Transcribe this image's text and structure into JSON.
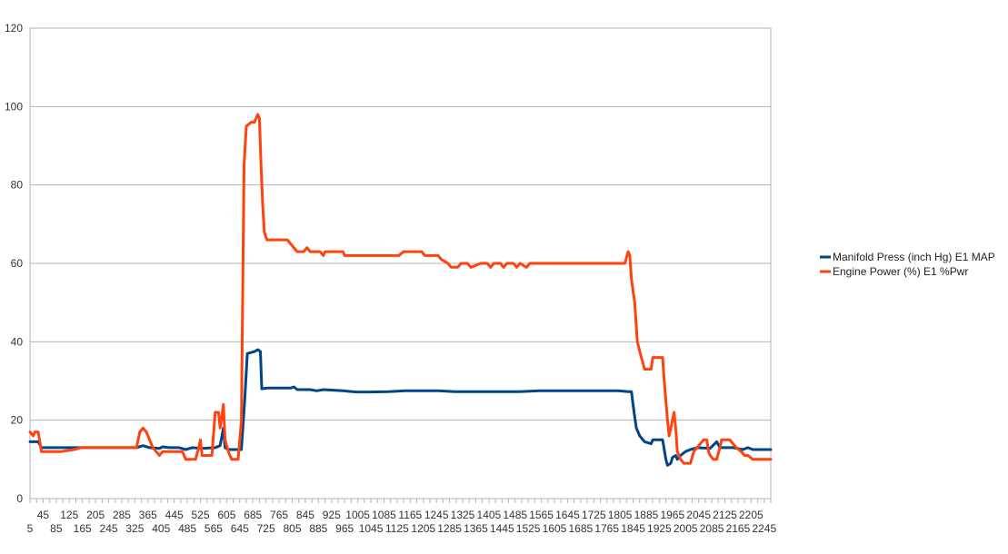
{
  "chart_data": {
    "type": "line",
    "title": "",
    "xlabel": "",
    "ylabel": "",
    "xlim": [
      5,
      2265
    ],
    "ylim": [
      0,
      120
    ],
    "yticks": [
      0,
      20,
      40,
      60,
      80,
      100,
      120
    ],
    "xticks_upper": [
      "45",
      "125",
      "205",
      "285",
      "365",
      "445",
      "525",
      "605",
      "685",
      "765",
      "845",
      "925",
      "1005",
      "1085",
      "1165",
      "1245",
      "1325",
      "1405",
      "1485",
      "1565",
      "1645",
      "1725",
      "1805",
      "1885",
      "1965",
      "2045",
      "2125",
      "2205"
    ],
    "xticks_lower": [
      "5",
      "85",
      "165",
      "245",
      "325",
      "405",
      "485",
      "565",
      "645",
      "725",
      "805",
      "885",
      "965",
      "1045",
      "1125",
      "1205",
      "1285",
      "1365",
      "1445",
      "1525",
      "1605",
      "1685",
      "1765",
      "1845",
      "1925",
      "2005",
      "2085",
      "2165",
      "2245"
    ],
    "grid": true,
    "legend_position": "right",
    "series": [
      {
        "name": "Manifold Press (inch Hg) E1 MAP",
        "color": "#004586",
        "points": [
          [
            5,
            14.5
          ],
          [
            30,
            14.5
          ],
          [
            40,
            13
          ],
          [
            120,
            13
          ],
          [
            160,
            13
          ],
          [
            300,
            13
          ],
          [
            330,
            13
          ],
          [
            350,
            13.5
          ],
          [
            370,
            13
          ],
          [
            400,
            12.8
          ],
          [
            410,
            13.2
          ],
          [
            430,
            13
          ],
          [
            460,
            13
          ],
          [
            480,
            12.5
          ],
          [
            500,
            13
          ],
          [
            530,
            12.8
          ],
          [
            570,
            13
          ],
          [
            585,
            13.5
          ],
          [
            595,
            18
          ],
          [
            600,
            13
          ],
          [
            610,
            12.5
          ],
          [
            650,
            12.5
          ],
          [
            660,
            25
          ],
          [
            668,
            37
          ],
          [
            690,
            37.5
          ],
          [
            700,
            38
          ],
          [
            708,
            37.5
          ],
          [
            712,
            28
          ],
          [
            730,
            28.2
          ],
          [
            800,
            28.2
          ],
          [
            810,
            28.5
          ],
          [
            820,
            27.8
          ],
          [
            860,
            27.8
          ],
          [
            880,
            27.5
          ],
          [
            900,
            27.8
          ],
          [
            960,
            27.5
          ],
          [
            1000,
            27.2
          ],
          [
            1040,
            27.2
          ],
          [
            1100,
            27.3
          ],
          [
            1150,
            27.5
          ],
          [
            1250,
            27.5
          ],
          [
            1300,
            27.3
          ],
          [
            1400,
            27.3
          ],
          [
            1500,
            27.3
          ],
          [
            1560,
            27.5
          ],
          [
            1700,
            27.5
          ],
          [
            1800,
            27.5
          ],
          [
            1830,
            27.3
          ],
          [
            1840,
            27.3
          ],
          [
            1848,
            22
          ],
          [
            1855,
            18
          ],
          [
            1865,
            16
          ],
          [
            1880,
            14.5
          ],
          [
            1900,
            14
          ],
          [
            1905,
            15
          ],
          [
            1935,
            15
          ],
          [
            1945,
            10
          ],
          [
            1950,
            8.5
          ],
          [
            1960,
            9
          ],
          [
            1965,
            10.5
          ],
          [
            1975,
            11
          ],
          [
            1980,
            10
          ],
          [
            1990,
            11
          ],
          [
            2005,
            12
          ],
          [
            2020,
            12.5
          ],
          [
            2040,
            13
          ],
          [
            2080,
            12.8
          ],
          [
            2100,
            14.5
          ],
          [
            2110,
            13
          ],
          [
            2150,
            13
          ],
          [
            2180,
            12.5
          ],
          [
            2195,
            13
          ],
          [
            2210,
            12.5
          ],
          [
            2265,
            12.5
          ]
        ]
      },
      {
        "name": "Engine Power (%) E1 %Pwr",
        "color": "#ff420e",
        "points": [
          [
            5,
            17
          ],
          [
            15,
            16
          ],
          [
            20,
            17
          ],
          [
            30,
            17
          ],
          [
            40,
            12
          ],
          [
            100,
            12
          ],
          [
            140,
            12.5
          ],
          [
            160,
            13
          ],
          [
            200,
            13
          ],
          [
            300,
            13
          ],
          [
            330,
            13
          ],
          [
            340,
            17
          ],
          [
            350,
            18
          ],
          [
            360,
            17
          ],
          [
            370,
            15
          ],
          [
            380,
            13
          ],
          [
            390,
            12
          ],
          [
            400,
            11
          ],
          [
            410,
            12
          ],
          [
            470,
            12
          ],
          [
            480,
            10
          ],
          [
            510,
            10
          ],
          [
            520,
            13
          ],
          [
            525,
            15
          ],
          [
            530,
            11
          ],
          [
            560,
            11
          ],
          [
            570,
            22
          ],
          [
            580,
            22
          ],
          [
            585,
            18
          ],
          [
            595,
            24
          ],
          [
            600,
            15
          ],
          [
            610,
            12
          ],
          [
            620,
            10
          ],
          [
            640,
            10
          ],
          [
            650,
            20
          ],
          [
            658,
            85
          ],
          [
            665,
            95
          ],
          [
            680,
            96
          ],
          [
            690,
            96
          ],
          [
            700,
            98
          ],
          [
            705,
            97
          ],
          [
            710,
            85
          ],
          [
            715,
            75
          ],
          [
            720,
            68
          ],
          [
            728,
            66
          ],
          [
            790,
            66
          ],
          [
            800,
            65
          ],
          [
            820,
            63
          ],
          [
            840,
            63
          ],
          [
            850,
            64
          ],
          [
            860,
            63
          ],
          [
            890,
            63
          ],
          [
            900,
            62
          ],
          [
            905,
            63
          ],
          [
            960,
            63
          ],
          [
            965,
            62
          ],
          [
            1130,
            62
          ],
          [
            1145,
            63
          ],
          [
            1200,
            63
          ],
          [
            1210,
            62
          ],
          [
            1250,
            62
          ],
          [
            1260,
            61
          ],
          [
            1280,
            60
          ],
          [
            1290,
            59
          ],
          [
            1310,
            59
          ],
          [
            1320,
            60
          ],
          [
            1340,
            60
          ],
          [
            1350,
            59
          ],
          [
            1380,
            60
          ],
          [
            1400,
            60
          ],
          [
            1410,
            59
          ],
          [
            1420,
            60
          ],
          [
            1440,
            60
          ],
          [
            1450,
            59
          ],
          [
            1460,
            60
          ],
          [
            1480,
            60
          ],
          [
            1490,
            59
          ],
          [
            1500,
            60
          ],
          [
            1520,
            59
          ],
          [
            1530,
            60
          ],
          [
            1820,
            60
          ],
          [
            1830,
            63
          ],
          [
            1835,
            62
          ],
          [
            1840,
            56
          ],
          [
            1850,
            50
          ],
          [
            1858,
            40
          ],
          [
            1870,
            36
          ],
          [
            1880,
            33
          ],
          [
            1900,
            33
          ],
          [
            1905,
            36
          ],
          [
            1935,
            36
          ],
          [
            1940,
            30
          ],
          [
            1950,
            20
          ],
          [
            1955,
            16
          ],
          [
            1960,
            18
          ],
          [
            1970,
            22
          ],
          [
            1975,
            18
          ],
          [
            1980,
            12
          ],
          [
            1990,
            10
          ],
          [
            2000,
            9
          ],
          [
            2020,
            9
          ],
          [
            2030,
            12
          ],
          [
            2040,
            13
          ],
          [
            2050,
            14
          ],
          [
            2060,
            15
          ],
          [
            2070,
            15
          ],
          [
            2075,
            12
          ],
          [
            2080,
            11
          ],
          [
            2090,
            10
          ],
          [
            2100,
            10
          ],
          [
            2110,
            13
          ],
          [
            2115,
            15
          ],
          [
            2140,
            15
          ],
          [
            2150,
            14
          ],
          [
            2160,
            13
          ],
          [
            2175,
            12
          ],
          [
            2185,
            11
          ],
          [
            2195,
            11
          ],
          [
            2210,
            10
          ],
          [
            2265,
            10
          ]
        ]
      }
    ]
  }
}
